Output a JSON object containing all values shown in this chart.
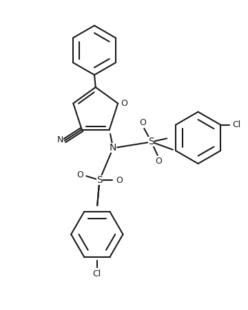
{
  "bg_color": "#ffffff",
  "line_color": "#1a1a1a",
  "line_width": 1.5,
  "figsize": [
    3.6,
    4.51
  ],
  "dpi": 100,
  "xlim": [
    0,
    10
  ],
  "ylim": [
    0,
    12.5
  ]
}
